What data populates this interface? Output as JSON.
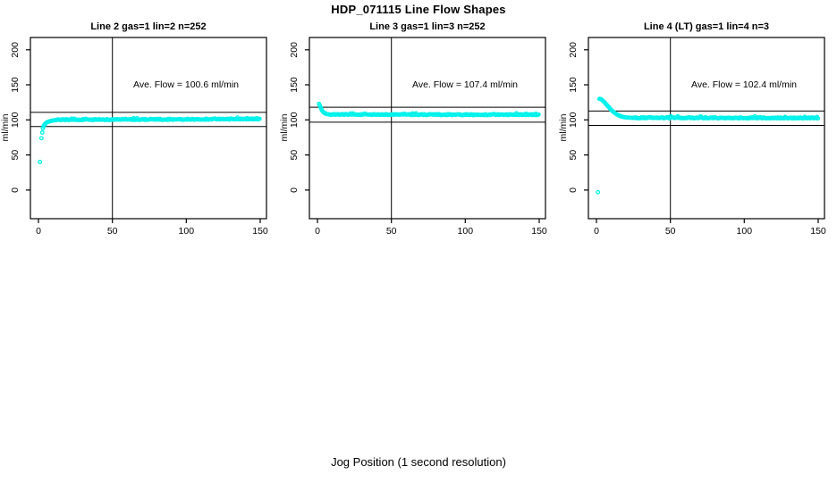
{
  "chart_data": {
    "type": "scatter",
    "title": "HDP_071115  Line Flow Shapes",
    "xlabel": "Jog Position (1 second resolution)",
    "ylabel": "ml/min",
    "xlim": [
      0,
      150
    ],
    "ylim": [
      0,
      200
    ],
    "xticks": [
      0,
      50,
      100,
      150
    ],
    "yticks": [
      0,
      50,
      100,
      150,
      200
    ],
    "vline_x": 50,
    "marker_color": "#00F2EA",
    "axis_color": "#000000",
    "background_color": "#FFFFFF",
    "legend": "none",
    "grid": "off",
    "panels": [
      {
        "title": "Line 2 gas=1 lin=2 n=252",
        "annotation": "Ave. Flow =  100.6  ml/min",
        "ave_flow_ml_min": 100.6,
        "gas": 1,
        "lin": 2,
        "n": 252,
        "hlines": [
          110.7,
          90.5
        ],
        "shape": "fast rise from ~40 to plateau ~101",
        "transient_points": [
          [
            1,
            40
          ],
          [
            2,
            74
          ],
          [
            2.6,
            82
          ],
          [
            3,
            88
          ],
          [
            3.4,
            90.5
          ],
          [
            3.8,
            92.5
          ],
          [
            4.2,
            93.6
          ],
          [
            4.6,
            94.6
          ],
          [
            5,
            95.4
          ],
          [
            5.5,
            96.1
          ],
          [
            6,
            96.7
          ],
          [
            6.5,
            97.2
          ],
          [
            7,
            97.6
          ],
          [
            7.5,
            98
          ],
          [
            8,
            98.3
          ],
          [
            8.6,
            98.6
          ],
          [
            9.2,
            98.9
          ],
          [
            10,
            99.2
          ],
          [
            10.8,
            99.5
          ],
          [
            11.6,
            99.8
          ]
        ],
        "steady": {
          "from": 12.2,
          "to": 150,
          "value_start": 100.2,
          "value_end": 101.2,
          "noise": 0.8,
          "step": 0.6
        }
      },
      {
        "title": "Line 3 gas=1 lin=3 n=252",
        "annotation": "Ave. Flow =  107.4  ml/min",
        "ave_flow_ml_min": 107.4,
        "gas": 1,
        "lin": 3,
        "n": 252,
        "hlines": [
          118.1,
          96.7
        ],
        "shape": "starts ~123, quick decay to plateau ~107.5",
        "transient_points": [
          [
            1,
            123
          ],
          [
            1.5,
            121
          ],
          [
            2,
            118.5
          ],
          [
            2.4,
            116.5
          ],
          [
            2.8,
            114.8
          ],
          [
            3.2,
            113.2
          ],
          [
            3.6,
            112
          ],
          [
            4,
            111
          ],
          [
            4.5,
            110.2
          ],
          [
            5,
            109.5
          ],
          [
            5.5,
            109
          ],
          [
            6,
            108.6
          ],
          [
            6.6,
            108.3
          ],
          [
            7.2,
            108
          ],
          [
            8,
            107.8
          ]
        ],
        "steady": {
          "from": 8.6,
          "to": 150,
          "value_start": 107.7,
          "value_end": 107.3,
          "noise": 0.7,
          "step": 0.6
        }
      },
      {
        "title": "Line 4 (LT) gas=1 lin=4 n=3",
        "annotation": "Ave. Flow =  102.4  ml/min",
        "ave_flow_ml_min": 102.4,
        "gas": 1,
        "lin": 4,
        "n": 3,
        "hlines": [
          112.6,
          92.2
        ],
        "shape": "starts ~130, slow decay to plateau ~103; one outlier near 0",
        "transient_points": [
          [
            1,
            -3
          ],
          [
            2,
            130
          ],
          [
            2.5,
            130
          ],
          [
            3,
            129.5
          ],
          [
            3.5,
            129
          ],
          [
            4,
            128
          ],
          [
            4.5,
            127
          ],
          [
            5,
            126
          ],
          [
            5.5,
            125
          ],
          [
            6,
            123.8
          ],
          [
            6.5,
            122.6
          ],
          [
            7,
            121.4
          ],
          [
            7.5,
            120.2
          ],
          [
            8,
            119
          ],
          [
            8.5,
            117.8
          ],
          [
            9,
            116.6
          ],
          [
            9.5,
            115.4
          ],
          [
            10,
            114.3
          ],
          [
            10.5,
            113.3
          ],
          [
            11,
            112.3
          ],
          [
            11.5,
            111.4
          ],
          [
            12,
            110.5
          ],
          [
            12.5,
            109.7
          ],
          [
            13,
            109
          ],
          [
            13.5,
            108.3
          ],
          [
            14,
            107.6
          ],
          [
            14.5,
            107
          ],
          [
            15,
            106.4
          ],
          [
            15.5,
            105.9
          ],
          [
            16,
            105.5
          ],
          [
            16.5,
            105.1
          ],
          [
            17,
            104.8
          ],
          [
            17.5,
            104.5
          ],
          [
            18,
            104.2
          ],
          [
            19,
            103.8
          ],
          [
            20,
            103.5
          ],
          [
            21,
            103.3
          ],
          [
            22,
            103.2
          ],
          [
            23,
            103.1
          ],
          [
            24,
            103
          ]
        ],
        "steady": {
          "from": 25,
          "to": 150,
          "value_start": 103.1,
          "value_end": 102.7,
          "noise": 0.7,
          "step": 0.6
        }
      }
    ]
  }
}
